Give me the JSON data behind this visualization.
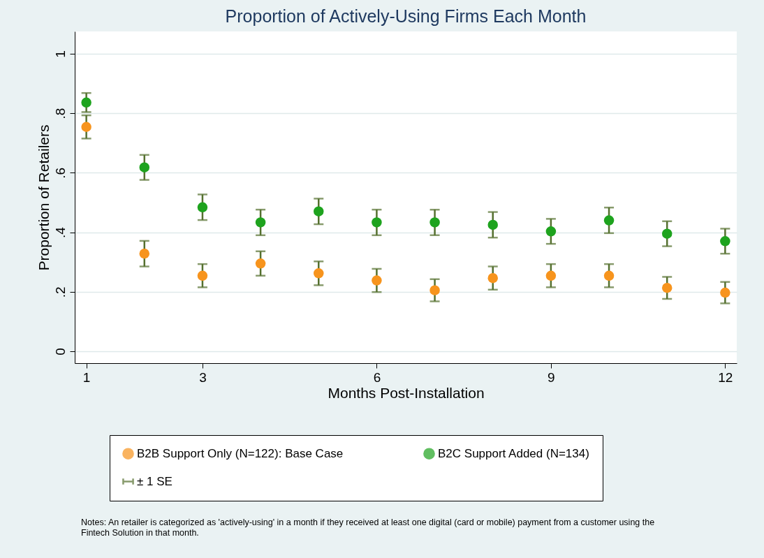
{
  "chart_data": {
    "type": "scatter",
    "title": "Proportion of Actively-Using Firms Each Month",
    "xlabel": "Months Post-Installation",
    "ylabel": "Proportion of Retailers",
    "x": [
      1,
      2,
      3,
      4,
      5,
      6,
      7,
      8,
      9,
      10,
      11,
      12
    ],
    "series": [
      {
        "name": "B2B Support Only (N=122): Base Case",
        "color": "#f7941d",
        "values": [
          0.754,
          0.328,
          0.254,
          0.295,
          0.262,
          0.238,
          0.205,
          0.246,
          0.254,
          0.254,
          0.213,
          0.197
        ],
        "errors": [
          0.039,
          0.043,
          0.039,
          0.041,
          0.04,
          0.039,
          0.037,
          0.039,
          0.039,
          0.039,
          0.037,
          0.036
        ]
      },
      {
        "name": "B2C Support Added (N=134)",
        "color": "#1ea31e",
        "values": [
          0.836,
          0.618,
          0.484,
          0.433,
          0.47,
          0.433,
          0.433,
          0.425,
          0.403,
          0.44,
          0.395,
          0.37
        ],
        "errors": [
          0.032,
          0.042,
          0.043,
          0.043,
          0.043,
          0.043,
          0.043,
          0.043,
          0.042,
          0.043,
          0.042,
          0.042
        ]
      }
    ],
    "xlim": [
      0.8,
      12.2
    ],
    "xticks": [
      1,
      3,
      6,
      9,
      12
    ],
    "ylim": [
      -0.04,
      1.075
    ],
    "yticks": [
      0,
      {
        "value": 0.2,
        "label": ".2"
      },
      {
        "value": 0.4,
        "label": ".4"
      },
      {
        "value": 0.6,
        "label": ".6"
      },
      {
        "value": 0.8,
        "label": ".8"
      },
      1
    ],
    "grid": "y",
    "legend": "bottom",
    "marker": "circle",
    "annotations": [
      "± 1 SE",
      "Notes: An retailer is categorized as 'actively-using' in a month if they received at least one digital (card or mobile) payment from a customer using the Fintech Solution in that month."
    ]
  }
}
